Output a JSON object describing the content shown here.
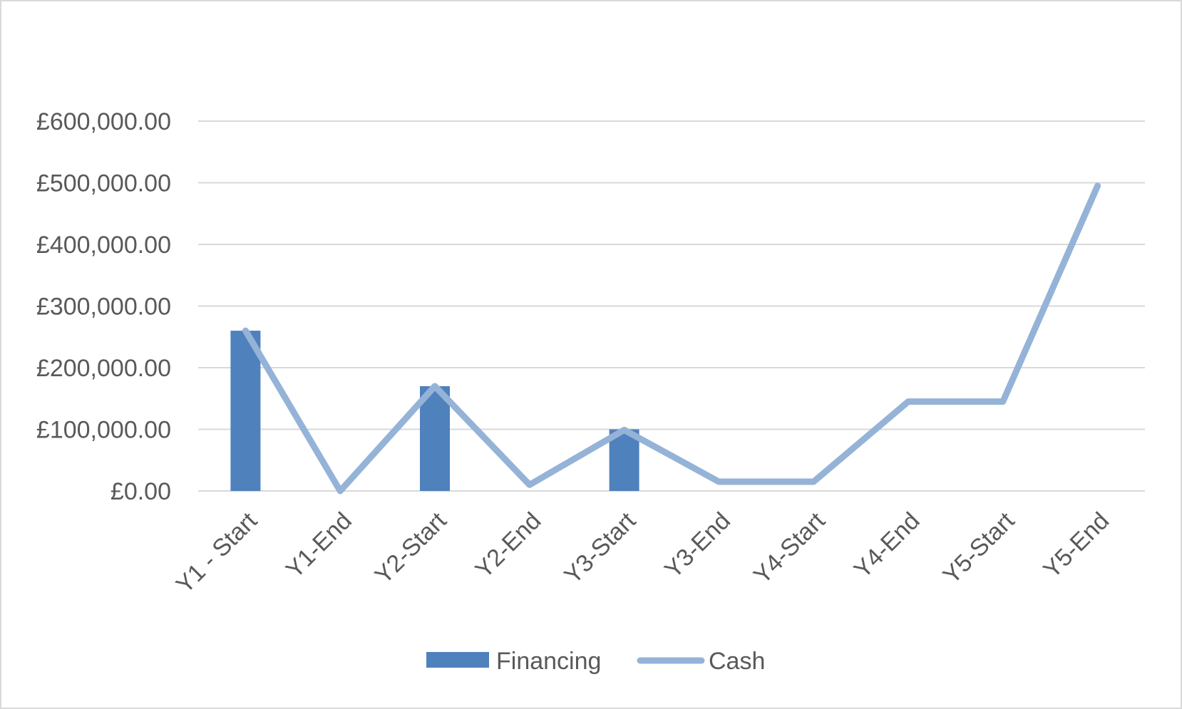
{
  "chart_data": {
    "type": "bar",
    "title": "",
    "xlabel": "",
    "ylabel": "",
    "categories": [
      "Y1 - Start",
      "Y1-End",
      "Y2-Start",
      "Y2-End",
      "Y3-Start",
      "Y3-End",
      "Y4-Start",
      "Y4-End",
      "Y5-Start",
      "Y5-End"
    ],
    "series": [
      {
        "name": "Financing",
        "type": "bar",
        "color": "#4f81bd",
        "values": [
          260000,
          0,
          170000,
          0,
          100000,
          0,
          0,
          0,
          0,
          0
        ]
      },
      {
        "name": "Cash",
        "type": "line",
        "color": "#95b3d7",
        "values": [
          260000,
          0,
          170000,
          10000,
          99000,
          15000,
          15000,
          145000,
          145000,
          495000
        ]
      }
    ],
    "ylim": [
      0,
      600000
    ],
    "yticks": [
      0,
      100000,
      200000,
      300000,
      400000,
      500000,
      600000
    ],
    "ytick_labels": [
      "£0.00",
      "£100,000.00",
      "£200,000.00",
      "£300,000.00",
      "£400,000.00",
      "£500,000.00",
      "£600,000.00"
    ],
    "grid": true,
    "legend_position": "bottom"
  }
}
